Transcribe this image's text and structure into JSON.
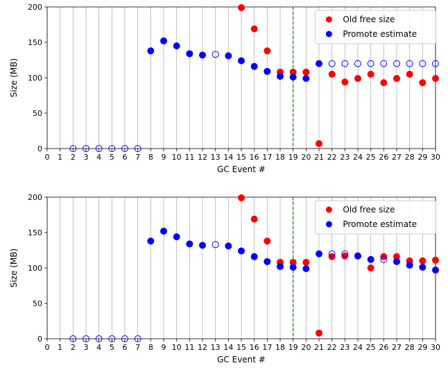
{
  "chart_data": [
    {
      "type": "scatter",
      "xlabel": "GC Event #",
      "ylabel": "Size (MB)",
      "xlim": [
        0,
        30
      ],
      "ylim": [
        0,
        200
      ],
      "xticks": [
        0,
        1,
        2,
        3,
        4,
        5,
        6,
        7,
        8,
        9,
        10,
        11,
        12,
        13,
        14,
        15,
        16,
        17,
        18,
        19,
        20,
        21,
        22,
        23,
        24,
        25,
        26,
        27,
        28,
        29,
        30
      ],
      "yticks": [
        0,
        50,
        100,
        150,
        200
      ],
      "grid": "vertical",
      "legend_placement": "top-right",
      "vline": {
        "x": 19,
        "color": "#008000",
        "style": "dashed"
      },
      "series": [
        {
          "name": "Old free size",
          "color": "#ff0000",
          "points": [
            {
              "x": 15,
              "y": 199,
              "filled": true
            },
            {
              "x": 16,
              "y": 169,
              "filled": true
            },
            {
              "x": 17,
              "y": 138,
              "filled": true
            },
            {
              "x": 18,
              "y": 108,
              "filled": true
            },
            {
              "x": 19,
              "y": 108,
              "filled": true
            },
            {
              "x": 20,
              "y": 108,
              "filled": true
            },
            {
              "x": 21,
              "y": 7,
              "filled": true
            },
            {
              "x": 22,
              "y": 105,
              "filled": true
            },
            {
              "x": 23,
              "y": 94,
              "filled": true
            },
            {
              "x": 24,
              "y": 99,
              "filled": true
            },
            {
              "x": 25,
              "y": 105,
              "filled": true
            },
            {
              "x": 26,
              "y": 93,
              "filled": true
            },
            {
              "x": 27,
              "y": 99,
              "filled": true
            },
            {
              "x": 28,
              "y": 105,
              "filled": true
            },
            {
              "x": 29,
              "y": 93,
              "filled": true
            },
            {
              "x": 30,
              "y": 99,
              "filled": true
            }
          ]
        },
        {
          "name": "Promote estimate",
          "color": "#0000ff",
          "points": [
            {
              "x": 2,
              "y": 0,
              "filled": false
            },
            {
              "x": 3,
              "y": 0,
              "filled": false
            },
            {
              "x": 4,
              "y": 0,
              "filled": false
            },
            {
              "x": 5,
              "y": 0,
              "filled": false
            },
            {
              "x": 6,
              "y": 0,
              "filled": false
            },
            {
              "x": 7,
              "y": 0,
              "filled": false
            },
            {
              "x": 8,
              "y": 138,
              "filled": true
            },
            {
              "x": 9,
              "y": 152,
              "filled": true
            },
            {
              "x": 10,
              "y": 145,
              "filled": true
            },
            {
              "x": 11,
              "y": 134,
              "filled": true
            },
            {
              "x": 12,
              "y": 132,
              "filled": true
            },
            {
              "x": 13,
              "y": 133,
              "filled": false
            },
            {
              "x": 14,
              "y": 131,
              "filled": true
            },
            {
              "x": 15,
              "y": 124,
              "filled": true
            },
            {
              "x": 16,
              "y": 116,
              "filled": true
            },
            {
              "x": 17,
              "y": 109,
              "filled": true
            },
            {
              "x": 18,
              "y": 102,
              "filled": true
            },
            {
              "x": 19,
              "y": 101,
              "filled": true
            },
            {
              "x": 20,
              "y": 99,
              "filled": true
            },
            {
              "x": 21,
              "y": 120,
              "filled": true
            },
            {
              "x": 22,
              "y": 120,
              "filled": false
            },
            {
              "x": 23,
              "y": 120,
              "filled": false
            },
            {
              "x": 24,
              "y": 120,
              "filled": false
            },
            {
              "x": 25,
              "y": 120,
              "filled": false
            },
            {
              "x": 26,
              "y": 120,
              "filled": false
            },
            {
              "x": 27,
              "y": 120,
              "filled": false
            },
            {
              "x": 28,
              "y": 120,
              "filled": false
            },
            {
              "x": 29,
              "y": 120,
              "filled": false
            },
            {
              "x": 30,
              "y": 120,
              "filled": false
            }
          ]
        }
      ]
    },
    {
      "type": "scatter",
      "xlabel": "GC Event #",
      "ylabel": "Size (MB)",
      "xlim": [
        0,
        30
      ],
      "ylim": [
        0,
        200
      ],
      "xticks": [
        0,
        1,
        2,
        3,
        4,
        5,
        6,
        7,
        8,
        9,
        10,
        11,
        12,
        13,
        14,
        15,
        16,
        17,
        18,
        19,
        20,
        21,
        22,
        23,
        24,
        25,
        26,
        27,
        28,
        29,
        30
      ],
      "yticks": [
        0,
        50,
        100,
        150,
        200
      ],
      "grid": "vertical",
      "legend_placement": "top-right",
      "vline": {
        "x": 19,
        "color": "#008000",
        "style": "dashed"
      },
      "series": [
        {
          "name": "Old free size",
          "color": "#ff0000",
          "points": [
            {
              "x": 15,
              "y": 199,
              "filled": true
            },
            {
              "x": 16,
              "y": 169,
              "filled": true
            },
            {
              "x": 17,
              "y": 138,
              "filled": true
            },
            {
              "x": 18,
              "y": 108,
              "filled": true
            },
            {
              "x": 19,
              "y": 108,
              "filled": true
            },
            {
              "x": 20,
              "y": 108,
              "filled": true
            },
            {
              "x": 21,
              "y": 8,
              "filled": true
            },
            {
              "x": 22,
              "y": 116,
              "filled": true
            },
            {
              "x": 23,
              "y": 117,
              "filled": true
            },
            {
              "x": 24,
              "y": 117,
              "filled": true
            },
            {
              "x": 25,
              "y": 100,
              "filled": true
            },
            {
              "x": 26,
              "y": 116,
              "filled": true
            },
            {
              "x": 27,
              "y": 116,
              "filled": true
            },
            {
              "x": 28,
              "y": 110,
              "filled": true
            },
            {
              "x": 29,
              "y": 110,
              "filled": true
            },
            {
              "x": 30,
              "y": 111,
              "filled": true
            }
          ]
        },
        {
          "name": "Promote estimate",
          "color": "#0000ff",
          "points": [
            {
              "x": 2,
              "y": 0,
              "filled": false
            },
            {
              "x": 3,
              "y": 0,
              "filled": false
            },
            {
              "x": 4,
              "y": 0,
              "filled": false
            },
            {
              "x": 5,
              "y": 0,
              "filled": false
            },
            {
              "x": 6,
              "y": 0,
              "filled": false
            },
            {
              "x": 7,
              "y": 0,
              "filled": false
            },
            {
              "x": 8,
              "y": 138,
              "filled": true
            },
            {
              "x": 9,
              "y": 152,
              "filled": true
            },
            {
              "x": 10,
              "y": 144,
              "filled": true
            },
            {
              "x": 11,
              "y": 134,
              "filled": true
            },
            {
              "x": 12,
              "y": 132,
              "filled": true
            },
            {
              "x": 13,
              "y": 133,
              "filled": false
            },
            {
              "x": 14,
              "y": 131,
              "filled": true
            },
            {
              "x": 15,
              "y": 124,
              "filled": true
            },
            {
              "x": 16,
              "y": 116,
              "filled": true
            },
            {
              "x": 17,
              "y": 109,
              "filled": true
            },
            {
              "x": 18,
              "y": 102,
              "filled": true
            },
            {
              "x": 19,
              "y": 101,
              "filled": true
            },
            {
              "x": 20,
              "y": 99,
              "filled": true
            },
            {
              "x": 21,
              "y": 120,
              "filled": true
            },
            {
              "x": 22,
              "y": 120,
              "filled": false
            },
            {
              "x": 23,
              "y": 120,
              "filled": false
            },
            {
              "x": 24,
              "y": 117,
              "filled": true
            },
            {
              "x": 25,
              "y": 112,
              "filled": true
            },
            {
              "x": 26,
              "y": 112,
              "filled": false
            },
            {
              "x": 27,
              "y": 109,
              "filled": true
            },
            {
              "x": 28,
              "y": 104,
              "filled": true
            },
            {
              "x": 29,
              "y": 101,
              "filled": true
            },
            {
              "x": 30,
              "y": 97,
              "filled": true
            }
          ]
        }
      ]
    }
  ]
}
